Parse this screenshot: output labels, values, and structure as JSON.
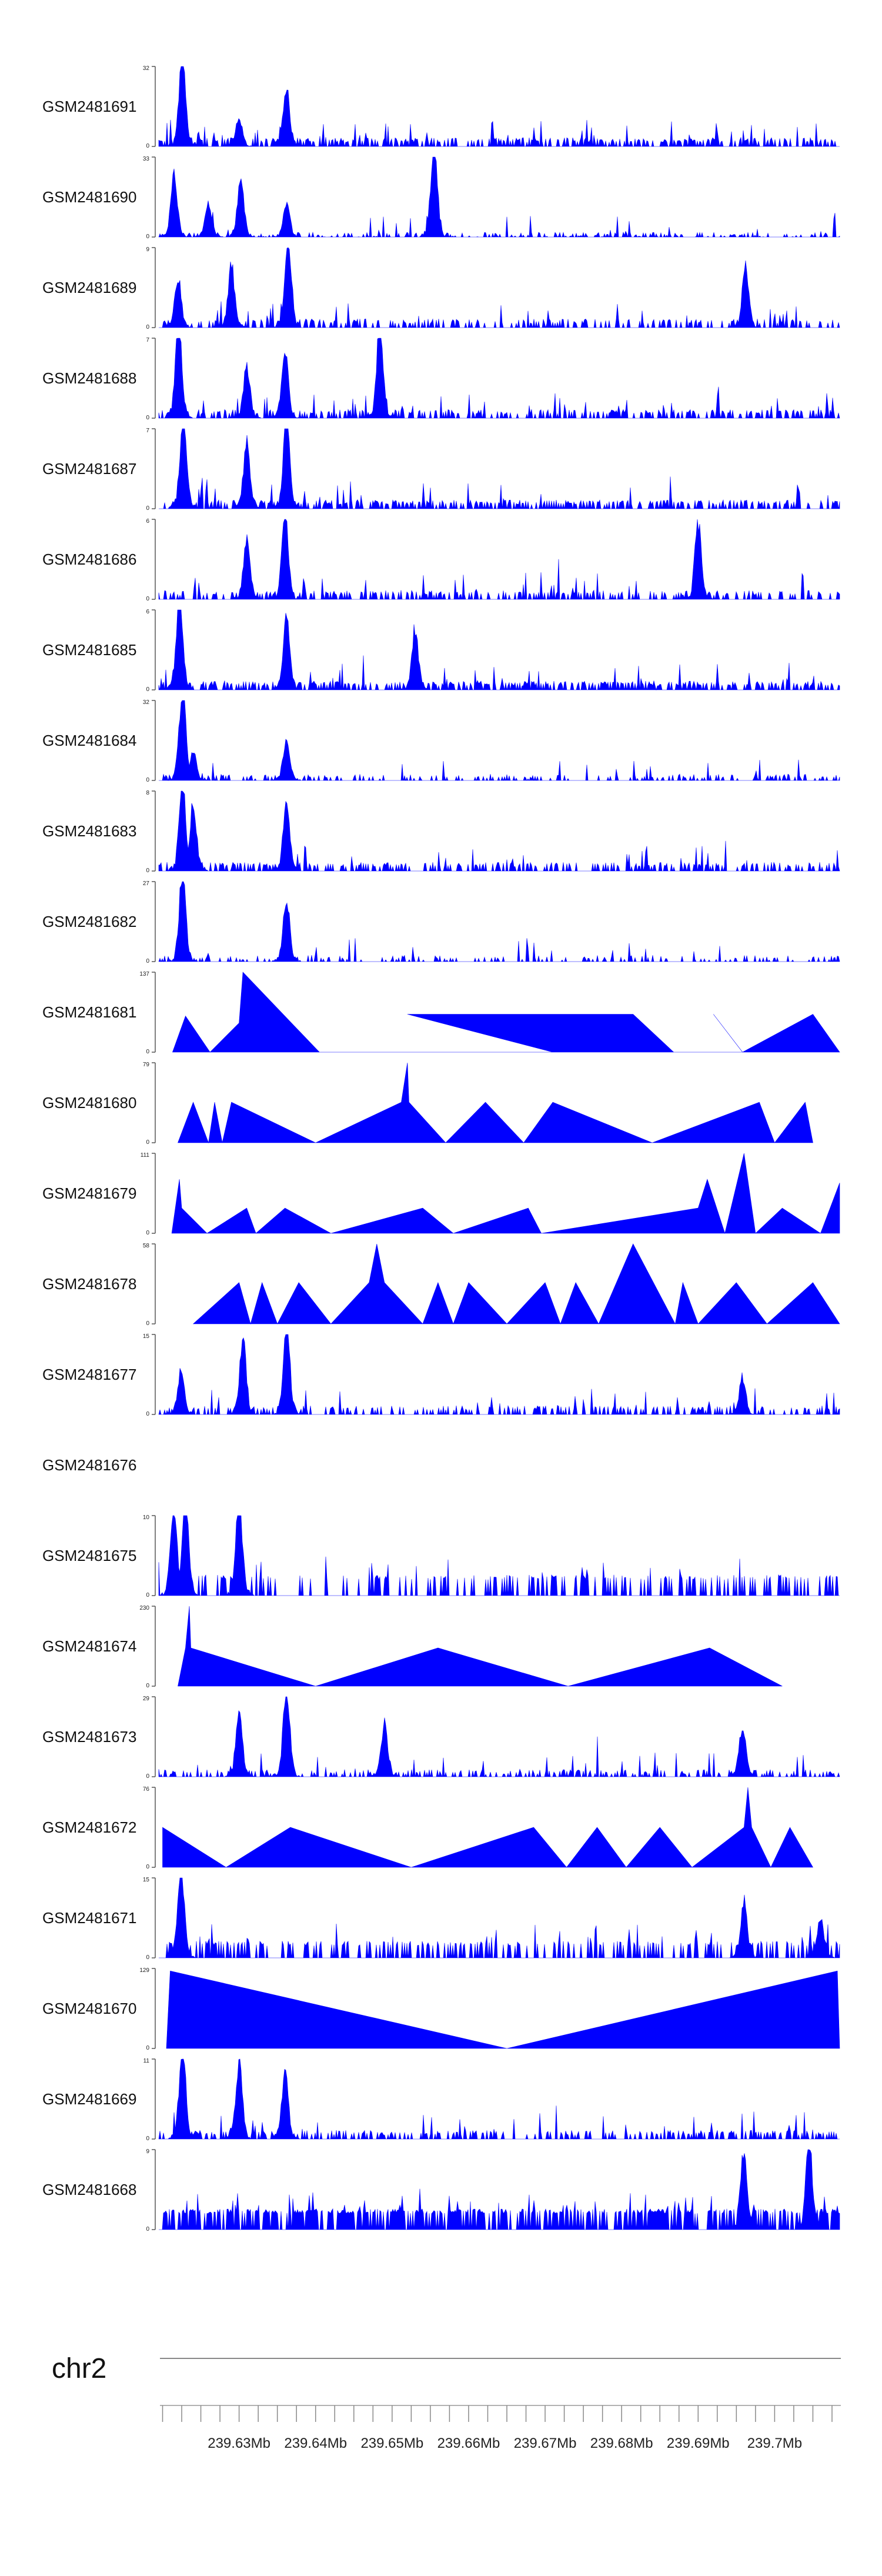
{
  "colors": {
    "signal": "#0000ff",
    "axis": "#555555",
    "text": "#222222"
  },
  "chromosome": "chr2",
  "axis": {
    "xlim_mb": [
      239.6195,
      239.7085
    ],
    "tick_step_mb": 0.0025,
    "labels": [
      "239.63Mb",
      "239.64Mb",
      "239.65Mb",
      "239.66Mb",
      "239.67Mb",
      "239.68Mb",
      "239.69Mb",
      "239.7Mb"
    ],
    "label_positions_mb": [
      239.63,
      239.64,
      239.65,
      239.66,
      239.67,
      239.68,
      239.69,
      239.7
    ]
  },
  "chart_data": {
    "type": "area",
    "title": "",
    "xlabel": "chr2",
    "ylabel": "",
    "xlim": [
      239.6195,
      239.7085
    ],
    "x_unit": "Mb",
    "series": [
      {
        "name": "GSM2481691",
        "ymin": 0,
        "ymax": 32,
        "style": "dense",
        "density": 0.55,
        "base": 0.05,
        "peaks": [
          {
            "x": 239.6226,
            "v": 32
          },
          {
            "x": 239.6362,
            "v": 20
          },
          {
            "x": 239.63,
            "v": 10
          }
        ]
      },
      {
        "name": "GSM2481690",
        "ymin": 0,
        "ymax": 33,
        "style": "sparse",
        "density": 0.4,
        "base": 0,
        "peaks": [
          {
            "x": 239.6215,
            "v": 22
          },
          {
            "x": 239.626,
            "v": 12
          },
          {
            "x": 239.6302,
            "v": 20
          },
          {
            "x": 239.6362,
            "v": 12
          },
          {
            "x": 239.6555,
            "v": 33
          }
        ]
      },
      {
        "name": "GSM2481689",
        "ymin": 0,
        "ymax": 9,
        "style": "dense",
        "density": 0.4,
        "base": 0.05,
        "peaks": [
          {
            "x": 239.6364,
            "v": 9
          },
          {
            "x": 239.629,
            "v": 6
          },
          {
            "x": 239.622,
            "v": 5
          },
          {
            "x": 239.6962,
            "v": 6
          }
        ]
      },
      {
        "name": "GSM2481688",
        "ymin": 0,
        "ymax": 7,
        "style": "dense",
        "density": 0.45,
        "base": 0.05,
        "peaks": [
          {
            "x": 239.6221,
            "v": 7
          },
          {
            "x": 239.6484,
            "v": 7
          },
          {
            "x": 239.636,
            "v": 5
          },
          {
            "x": 239.631,
            "v": 4
          }
        ]
      },
      {
        "name": "GSM2481687",
        "ymin": 0,
        "ymax": 7,
        "style": "dense",
        "density": 0.55,
        "base": 0.05,
        "peaks": [
          {
            "x": 239.6227,
            "v": 7
          },
          {
            "x": 239.6362,
            "v": 7
          },
          {
            "x": 239.631,
            "v": 5
          }
        ]
      },
      {
        "name": "GSM2481686",
        "ymin": 0,
        "ymax": 6,
        "style": "dense",
        "density": 0.4,
        "base": 0.05,
        "peaks": [
          {
            "x": 239.636,
            "v": 6
          },
          {
            "x": 239.69,
            "v": 5
          },
          {
            "x": 239.631,
            "v": 4
          }
        ]
      },
      {
        "name": "GSM2481685",
        "ymin": 0,
        "ymax": 6,
        "style": "dense",
        "density": 0.55,
        "base": 0.05,
        "peaks": [
          {
            "x": 239.6222,
            "v": 6
          },
          {
            "x": 239.6362,
            "v": 5
          },
          {
            "x": 239.653,
            "v": 4
          }
        ]
      },
      {
        "name": "GSM2481684",
        "ymin": 0,
        "ymax": 32,
        "style": "dense",
        "density": 0.3,
        "base": 0.02,
        "peaks": [
          {
            "x": 239.6226,
            "v": 32
          },
          {
            "x": 239.6362,
            "v": 15
          },
          {
            "x": 239.624,
            "v": 10
          }
        ]
      },
      {
        "name": "GSM2481683",
        "ymin": 0,
        "ymax": 8,
        "style": "dense",
        "density": 0.45,
        "base": 0.05,
        "peaks": [
          {
            "x": 239.6226,
            "v": 8
          },
          {
            "x": 239.6362,
            "v": 6
          },
          {
            "x": 239.624,
            "v": 6
          }
        ]
      },
      {
        "name": "GSM2481682",
        "ymin": 0,
        "ymax": 27,
        "style": "dense",
        "density": 0.3,
        "base": 0.02,
        "peaks": [
          {
            "x": 239.6226,
            "v": 27
          },
          {
            "x": 239.6362,
            "v": 19
          }
        ]
      },
      {
        "name": "GSM2481681",
        "ymin": 0,
        "ymax": 137,
        "style": "tri",
        "points": [
          [
            239.6213,
            0
          ],
          [
            239.623,
            62
          ],
          [
            239.6262,
            0
          ],
          [
            239.63,
            50
          ],
          [
            239.6305,
            137
          ],
          [
            239.6405,
            0
          ],
          [
            239.671,
            0
          ],
          [
            239.652,
            65
          ],
          [
            239.6815,
            65
          ],
          [
            239.6868,
            0
          ],
          [
            239.6958,
            0
          ],
          [
            239.692,
            65
          ],
          [
            239.6958,
            0
          ],
          [
            239.705,
            65
          ],
          [
            239.7085,
            0
          ]
        ]
      },
      {
        "name": "GSM2481680",
        "ymin": 0,
        "ymax": 79,
        "style": "tri",
        "points": [
          [
            239.622,
            0
          ],
          [
            239.624,
            40
          ],
          [
            239.626,
            0
          ],
          [
            239.6268,
            40
          ],
          [
            239.6278,
            0
          ],
          [
            239.629,
            40
          ],
          [
            239.64,
            0
          ],
          [
            239.6512,
            40
          ],
          [
            239.652,
            79
          ],
          [
            239.6522,
            40
          ],
          [
            239.657,
            0
          ],
          [
            239.6622,
            40
          ],
          [
            239.6672,
            0
          ],
          [
            239.671,
            40
          ],
          [
            239.684,
            0
          ],
          [
            239.698,
            40
          ],
          [
            239.7,
            0
          ],
          [
            239.704,
            40
          ],
          [
            239.705,
            0
          ]
        ]
      },
      {
        "name": "GSM2481679",
        "ymin": 0,
        "ymax": 111,
        "style": "tri",
        "points": [
          [
            239.6212,
            0
          ],
          [
            239.6222,
            75
          ],
          [
            239.6225,
            35
          ],
          [
            239.6258,
            0
          ],
          [
            239.631,
            35
          ],
          [
            239.6322,
            0
          ],
          [
            239.636,
            35
          ],
          [
            239.642,
            0
          ],
          [
            239.654,
            35
          ],
          [
            239.658,
            0
          ],
          [
            239.6678,
            35
          ],
          [
            239.6695,
            0
          ],
          [
            239.69,
            35
          ],
          [
            239.6912,
            75
          ],
          [
            239.6935,
            0
          ],
          [
            239.696,
            111
          ],
          [
            239.6975,
            0
          ],
          [
            239.701,
            35
          ],
          [
            239.706,
            0
          ],
          [
            239.7085,
            70
          ]
        ]
      },
      {
        "name": "GSM2481678",
        "ymin": 0,
        "ymax": 58,
        "style": "tri",
        "points": [
          [
            239.624,
            0
          ],
          [
            239.63,
            30
          ],
          [
            239.6315,
            0
          ],
          [
            239.633,
            30
          ],
          [
            239.635,
            0
          ],
          [
            239.6378,
            30
          ],
          [
            239.642,
            0
          ],
          [
            239.647,
            30
          ],
          [
            239.648,
            58
          ],
          [
            239.649,
            30
          ],
          [
            239.654,
            0
          ],
          [
            239.656,
            30
          ],
          [
            239.658,
            0
          ],
          [
            239.66,
            30
          ],
          [
            239.665,
            0
          ],
          [
            239.67,
            30
          ],
          [
            239.672,
            0
          ],
          [
            239.674,
            30
          ],
          [
            239.677,
            0
          ],
          [
            239.6815,
            58
          ],
          [
            239.687,
            0
          ],
          [
            239.688,
            30
          ],
          [
            239.69,
            0
          ],
          [
            239.695,
            30
          ],
          [
            239.699,
            0
          ],
          [
            239.705,
            30
          ],
          [
            239.7085,
            0
          ]
        ]
      },
      {
        "name": "GSM2481677",
        "ymin": 0,
        "ymax": 15,
        "style": "dense",
        "density": 0.35,
        "base": 0.05,
        "peaks": [
          {
            "x": 239.6362,
            "v": 15
          },
          {
            "x": 239.6305,
            "v": 12
          },
          {
            "x": 239.6224,
            "v": 7
          },
          {
            "x": 239.6958,
            "v": 6
          }
        ]
      },
      {
        "name": "GSM2481676",
        "ymin": null,
        "ymax": null,
        "style": "empty"
      },
      {
        "name": "GSM2481675",
        "ymin": 0,
        "ymax": 10,
        "style": "dense",
        "density": 0.3,
        "base": 0.2,
        "peaks": [
          {
            "x": 239.6215,
            "v": 10
          },
          {
            "x": 239.623,
            "v": 10
          },
          {
            "x": 239.63,
            "v": 10
          }
        ]
      },
      {
        "name": "GSM2481674",
        "ymin": 0,
        "ymax": 230,
        "style": "tri",
        "points": [
          [
            239.622,
            0
          ],
          [
            239.623,
            110
          ],
          [
            239.6235,
            230
          ],
          [
            239.6237,
            110
          ],
          [
            239.64,
            0
          ],
          [
            239.656,
            110
          ],
          [
            239.673,
            0
          ],
          [
            239.6915,
            110
          ],
          [
            239.701,
            0
          ]
        ]
      },
      {
        "name": "GSM2481673",
        "ymin": 0,
        "ymax": 29,
        "style": "dense",
        "density": 0.4,
        "base": 0.03,
        "peaks": [
          {
            "x": 239.6362,
            "v": 29
          },
          {
            "x": 239.63,
            "v": 20
          },
          {
            "x": 239.649,
            "v": 17
          },
          {
            "x": 239.6958,
            "v": 16
          }
        ]
      },
      {
        "name": "GSM2481672",
        "ymin": 0,
        "ymax": 76,
        "style": "tri",
        "points": [
          [
            239.62,
            38
          ],
          [
            239.6283,
            0
          ],
          [
            239.6367,
            38
          ],
          [
            239.6525,
            0
          ],
          [
            239.6685,
            38
          ],
          [
            239.6728,
            0
          ],
          [
            239.6768,
            38
          ],
          [
            239.6806,
            0
          ],
          [
            239.685,
            38
          ],
          [
            239.6892,
            0
          ],
          [
            239.696,
            38
          ],
          [
            239.6965,
            76
          ],
          [
            239.697,
            38
          ],
          [
            239.6995,
            0
          ],
          [
            239.702,
            38
          ],
          [
            239.705,
            0
          ]
        ]
      },
      {
        "name": "GSM2481671",
        "ymin": 0,
        "ymax": 15,
        "style": "dense",
        "density": 0.35,
        "base": 0.15,
        "peaks": [
          {
            "x": 239.6224,
            "v": 15
          },
          {
            "x": 239.696,
            "v": 9
          },
          {
            "x": 239.706,
            "v": 7
          }
        ]
      },
      {
        "name": "GSM2481670",
        "ymin": 0,
        "ymax": 129,
        "style": "tri",
        "points": [
          [
            239.6205,
            0
          ],
          [
            239.621,
            125
          ],
          [
            239.665,
            0
          ],
          [
            239.7082,
            125
          ],
          [
            239.7085,
            0
          ]
        ]
      },
      {
        "name": "GSM2481669",
        "ymin": 0,
        "ymax": 11,
        "style": "dense",
        "density": 0.45,
        "base": 0.05,
        "peaks": [
          {
            "x": 239.6226,
            "v": 11
          },
          {
            "x": 239.63,
            "v": 9
          },
          {
            "x": 239.636,
            "v": 8
          }
        ]
      },
      {
        "name": "GSM2481668",
        "ymin": 0,
        "ymax": 9,
        "style": "dense",
        "density": 0.65,
        "base": 0.2,
        "peaks": [
          {
            "x": 239.7045,
            "v": 9
          },
          {
            "x": 239.696,
            "v": 8
          }
        ]
      }
    ]
  }
}
